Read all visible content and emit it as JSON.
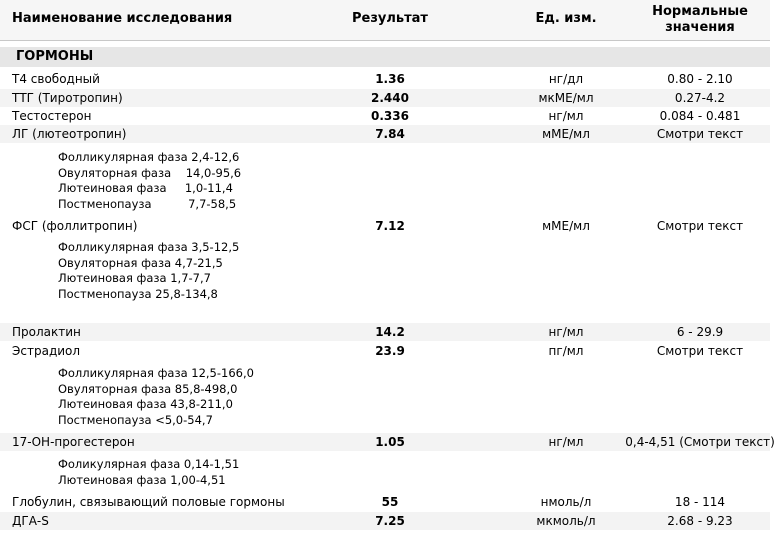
{
  "header": {
    "columns": [
      "Наименование исследования",
      "Результат",
      "Ед. изм.",
      "Нормальные значения"
    ]
  },
  "section": {
    "title": "ГОРМОНЫ"
  },
  "rows": [
    {
      "name": "Т4 свободный",
      "result": "1.36",
      "unit": "нг/дл",
      "norm": "0.80 - 2.10"
    },
    {
      "name": "ТТГ (Тиротропин)",
      "result": "2.440",
      "unit": "мкМЕ/мл",
      "norm": "0.27-4.2"
    },
    {
      "name": "Тестостерон",
      "result": "0.336",
      "unit": "нг/мл",
      "norm": "0.084 - 0.481"
    },
    {
      "name": "ЛГ (лютеотропин)",
      "result": "7.84",
      "unit": "мМЕ/мл",
      "norm": "Смотри текст",
      "notes": [
        "Фолликулярная фаза 2,4-12,6",
        "Овуляторная фаза    14,0-95,6",
        "Лютеиновая фаза     1,0-11,4",
        "Постменопауза          7,7-58,5"
      ]
    },
    {
      "name": "ФСГ (фоллитропин)",
      "result": "7.12",
      "unit": "мМЕ/мл",
      "norm": "Смотри текст",
      "notes": [
        "Фолликулярная фаза 3,5-12,5",
        "Овуляторная фаза 4,7-21,5",
        "Лютеиновая фаза 1,7-7,7",
        "Постменопауза 25,8-134,8"
      ]
    },
    {
      "name": "Пролактин",
      "result": "14.2",
      "unit": "нг/мл",
      "norm": "6 - 29.9"
    },
    {
      "name": "Эстрадиол",
      "result": "23.9",
      "unit": "пг/мл",
      "norm": "Смотри текст",
      "notes": [
        "Фолликулярная фаза 12,5-166,0",
        "Овуляторная фаза 85,8-498,0",
        "Лютеиновая фаза 43,8-211,0",
        "Постменопауза <5,0-54,7"
      ]
    },
    {
      "name": "17-ОН-прогестерон",
      "result": "1.05",
      "unit": "нг/мл",
      "norm": "0,4-4,51 (Смотри текст)",
      "notes": [
        "Фоликулярная фаза 0,14-1,51",
        "Лютеиновая фаза 1,00-4,51"
      ]
    },
    {
      "name": "Глобулин, связывающий половые гормоны",
      "result": "55",
      "unit": "нмоль/л",
      "norm": "18 - 114"
    },
    {
      "name": "ДГА-S",
      "result": "7.25",
      "unit": "мкмоль/л",
      "norm": "2.68 - 9.23"
    }
  ]
}
